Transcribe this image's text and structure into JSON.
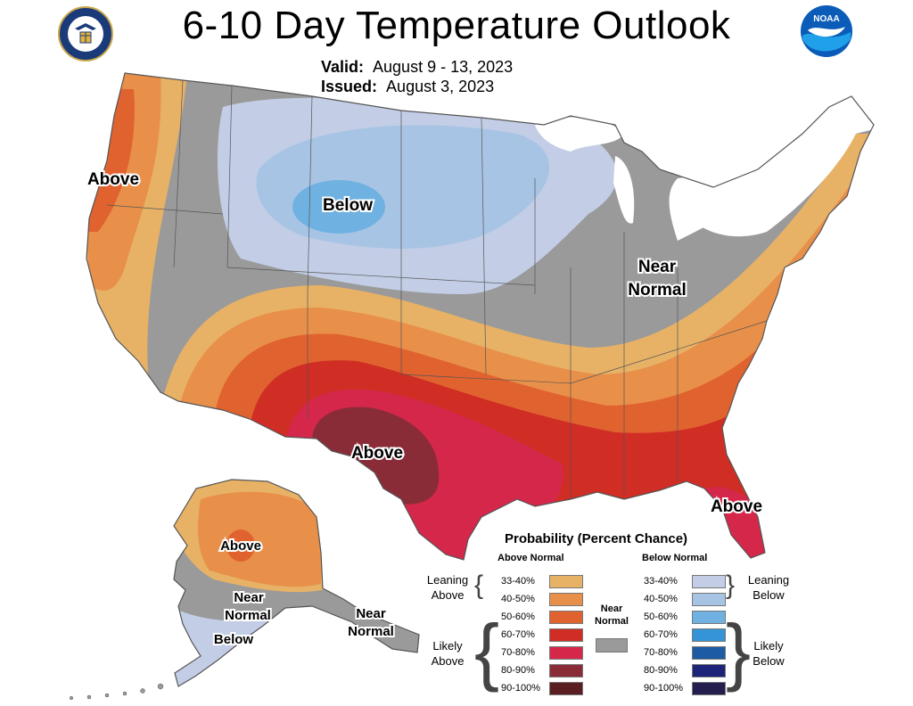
{
  "header": {
    "title": "6-10 Day Temperature Outlook",
    "valid_label": "Valid:",
    "valid_dates": "August 9 - 13, 2023",
    "issued_label": "Issued:",
    "issued_date": "August 3, 2023",
    "left_logo_icon": "department-of-commerce-seal-icon",
    "right_logo_icon": "noaa-logo-icon",
    "right_logo_text": "NOAA"
  },
  "map_labels": {
    "west_coast": "Above",
    "north_central": "Below",
    "midwest_line1": "Near",
    "midwest_line2": "Normal",
    "texas": "Above",
    "florida": "Above",
    "alaska_interior": "Above",
    "alaska_south_line1": "Near",
    "alaska_south_line2": "Normal",
    "alaska_southwest": "Below",
    "alaska_panhandle_line1": "Near",
    "alaska_panhandle_line2": "Normal"
  },
  "legend": {
    "title": "Probability (Percent Chance)",
    "above_header": "Above Normal",
    "below_header": "Below Normal",
    "near_normal_line1": "Near",
    "near_normal_line2": "Normal",
    "near_normal_color": "#9a9a9a",
    "leaning_above_line1": "Leaning",
    "leaning_above_line2": "Above",
    "likely_above_line1": "Likely",
    "likely_above_line2": "Above",
    "leaning_below_line1": "Leaning",
    "leaning_below_line2": "Below",
    "likely_below_line1": "Likely",
    "likely_below_line2": "Below",
    "above": [
      {
        "label": "33-40%",
        "color": "#e8b266"
      },
      {
        "label": "40-50%",
        "color": "#e8904a"
      },
      {
        "label": "50-60%",
        "color": "#e0622f"
      },
      {
        "label": "60-70%",
        "color": "#d02d25"
      },
      {
        "label": "70-80%",
        "color": "#d5274a"
      },
      {
        "label": "80-90%",
        "color": "#8a2c38"
      },
      {
        "label": "90-100%",
        "color": "#5a1f22"
      }
    ],
    "below": [
      {
        "label": "33-40%",
        "color": "#c3cee6"
      },
      {
        "label": "40-50%",
        "color": "#a8c4e4"
      },
      {
        "label": "50-60%",
        "color": "#6fb2e2"
      },
      {
        "label": "60-70%",
        "color": "#3494d6"
      },
      {
        "label": "70-80%",
        "color": "#1d5ba4"
      },
      {
        "label": "80-90%",
        "color": "#1c2378"
      },
      {
        "label": "90-100%",
        "color": "#241e4e"
      }
    ]
  },
  "colors": {
    "near_normal": "#9a9a9a",
    "great_lakes": "#ffffff",
    "ocean": "#ffffff"
  }
}
